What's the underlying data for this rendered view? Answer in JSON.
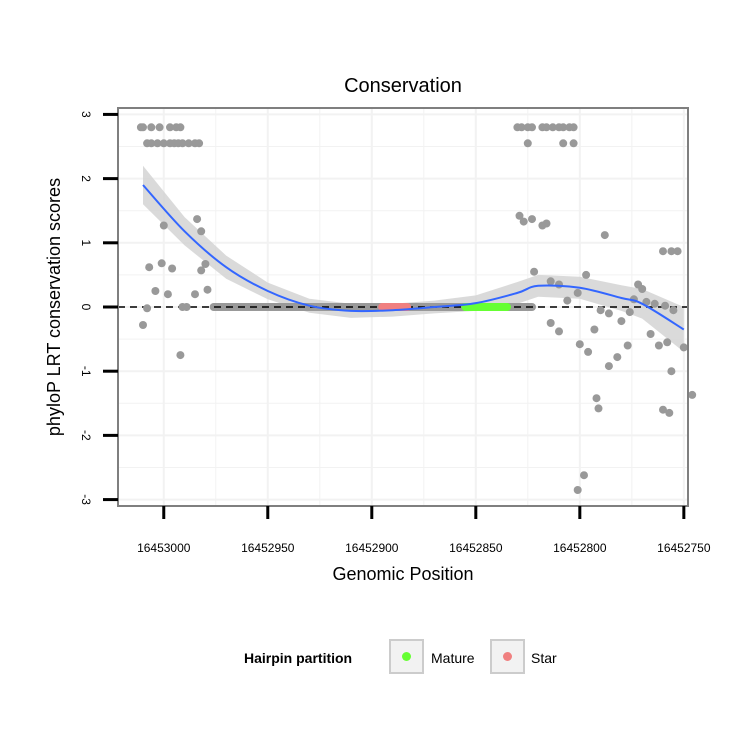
{
  "chart_data": {
    "type": "scatter",
    "title": "Conservation",
    "xlabel": "Genomic Position",
    "ylabel": "phyloP LRT conservation scores",
    "xlim": [
      16453022,
      16452748
    ],
    "ylim": [
      -3.1,
      3.1
    ],
    "x_ticks": [
      16453000,
      16452950,
      16452900,
      16452850,
      16452800,
      16452750
    ],
    "x_tick_labels": [
      "16453000",
      "16452950",
      "16452900",
      "16452850",
      "16452800",
      "16452750"
    ],
    "y_ticks": [
      3,
      2,
      1,
      0,
      -1,
      -2,
      -3
    ],
    "y_tick_labels": [
      "3",
      "2",
      "1",
      "0",
      "-1",
      "-2",
      "-3"
    ],
    "reference_line": {
      "y": 0,
      "style": "dashed"
    },
    "baseline_segment": {
      "x_start": 16452976,
      "x_end": 16452823,
      "y": 0
    },
    "points": [
      [
        16453011,
        2.8
      ],
      [
        16453010,
        2.8
      ],
      [
        16453006,
        2.8
      ],
      [
        16453002,
        2.8
      ],
      [
        16452997,
        2.8
      ],
      [
        16452994,
        2.8
      ],
      [
        16452992,
        2.8
      ],
      [
        16453008,
        2.55
      ],
      [
        16453006,
        2.55
      ],
      [
        16453003,
        2.55
      ],
      [
        16453000,
        2.55
      ],
      [
        16452997,
        2.55
      ],
      [
        16452995,
        2.55
      ],
      [
        16452993,
        2.55
      ],
      [
        16452991,
        2.55
      ],
      [
        16452988,
        2.55
      ],
      [
        16452985,
        2.55
      ],
      [
        16452983,
        2.55
      ],
      [
        16453000,
        1.27
      ],
      [
        16452984,
        1.37
      ],
      [
        16452982,
        1.18
      ],
      [
        16453007,
        0.62
      ],
      [
        16453001,
        0.68
      ],
      [
        16452996,
        0.6
      ],
      [
        16452982,
        0.57
      ],
      [
        16452980,
        0.67
      ],
      [
        16453004,
        0.25
      ],
      [
        16452998,
        0.2
      ],
      [
        16452985,
        0.2
      ],
      [
        16452979,
        0.27
      ],
      [
        16453010,
        -0.28
      ],
      [
        16453008,
        -0.02
      ],
      [
        16452991,
        0.0
      ],
      [
        16452989,
        0.0
      ],
      [
        16452992,
        -0.75
      ],
      [
        16452830,
        2.8
      ],
      [
        16452828,
        2.8
      ],
      [
        16452825,
        2.8
      ],
      [
        16452823,
        2.8
      ],
      [
        16452818,
        2.8
      ],
      [
        16452816,
        2.8
      ],
      [
        16452813,
        2.8
      ],
      [
        16452810,
        2.8
      ],
      [
        16452808,
        2.8
      ],
      [
        16452805,
        2.8
      ],
      [
        16452803,
        2.8
      ],
      [
        16452825,
        2.55
      ],
      [
        16452808,
        2.55
      ],
      [
        16452803,
        2.55
      ],
      [
        16452829,
        1.42
      ],
      [
        16452827,
        1.33
      ],
      [
        16452823,
        1.37
      ],
      [
        16452818,
        1.27
      ],
      [
        16452816,
        1.3
      ],
      [
        16452822,
        0.55
      ],
      [
        16452814,
        0.4
      ],
      [
        16452810,
        0.35
      ],
      [
        16452806,
        0.1
      ],
      [
        16452801,
        0.22
      ],
      [
        16452797,
        0.5
      ],
      [
        16452788,
        1.12
      ],
      [
        16452760,
        0.87
      ],
      [
        16452756,
        0.87
      ],
      [
        16452753,
        0.87
      ],
      [
        16452772,
        0.35
      ],
      [
        16452770,
        0.28
      ],
      [
        16452774,
        0.12
      ],
      [
        16452768,
        0.08
      ],
      [
        16452764,
        0.05
      ],
      [
        16452759,
        0.02
      ],
      [
        16452755,
        -0.05
      ],
      [
        16452790,
        -0.05
      ],
      [
        16452786,
        -0.1
      ],
      [
        16452780,
        -0.22
      ],
      [
        16452776,
        -0.08
      ],
      [
        16452814,
        -0.25
      ],
      [
        16452810,
        -0.38
      ],
      [
        16452793,
        -0.35
      ],
      [
        16452766,
        -0.42
      ],
      [
        16452758,
        -0.55
      ],
      [
        16452750,
        -0.63
      ],
      [
        16452800,
        -0.58
      ],
      [
        16452796,
        -0.7
      ],
      [
        16452782,
        -0.78
      ],
      [
        16452786,
        -0.92
      ],
      [
        16452777,
        -0.6
      ],
      [
        16452762,
        -0.6
      ],
      [
        16452792,
        -1.42
      ],
      [
        16452791,
        -1.58
      ],
      [
        16452760,
        -1.6
      ],
      [
        16452757,
        -1.65
      ],
      [
        16452756,
        -1.0
      ],
      [
        16452746,
        -1.37
      ],
      [
        16452798,
        -2.62
      ],
      [
        16452801,
        -2.85
      ]
    ],
    "smooth": {
      "x": [
        16453010,
        16452990,
        16452970,
        16452950,
        16452930,
        16452910,
        16452890,
        16452870,
        16452850,
        16452830,
        16452820,
        16452800,
        16452780,
        16452770,
        16452750
      ],
      "y": [
        1.9,
        1.18,
        0.62,
        0.25,
        0.02,
        -0.06,
        -0.05,
        0.0,
        0.06,
        0.22,
        0.33,
        0.3,
        0.14,
        0.05,
        -0.35
      ],
      "ci_upper": [
        2.2,
        1.4,
        0.8,
        0.38,
        0.13,
        0.05,
        0.05,
        0.1,
        0.18,
        0.39,
        0.5,
        0.47,
        0.34,
        0.28,
        0.0
      ],
      "ci_lower": [
        1.6,
        0.96,
        0.44,
        0.12,
        -0.09,
        -0.17,
        -0.15,
        -0.1,
        -0.06,
        0.05,
        0.16,
        0.13,
        -0.06,
        -0.18,
        -0.7
      ]
    },
    "partitions": [
      {
        "name": "Star",
        "x_start": 16452895,
        "x_end": 16452883,
        "color": "#f08080"
      },
      {
        "name": "Mature",
        "x_start": 16452855,
        "x_end": 16452835,
        "color": "#66ff33"
      }
    ],
    "legend": {
      "title": "Hairpin partition",
      "position": "bottom",
      "items": [
        {
          "label": "Mature",
          "color": "#66ff33"
        },
        {
          "label": "Star",
          "color": "#f08080"
        }
      ]
    },
    "colors": {
      "points": "#999999",
      "smooth_line": "#3366ff",
      "ci_band": "#d3d3d3",
      "grid": "#f2f2f2",
      "frame": "#7f7f7f",
      "baseline_bar": "#999999",
      "reference_line": "#000000"
    }
  }
}
